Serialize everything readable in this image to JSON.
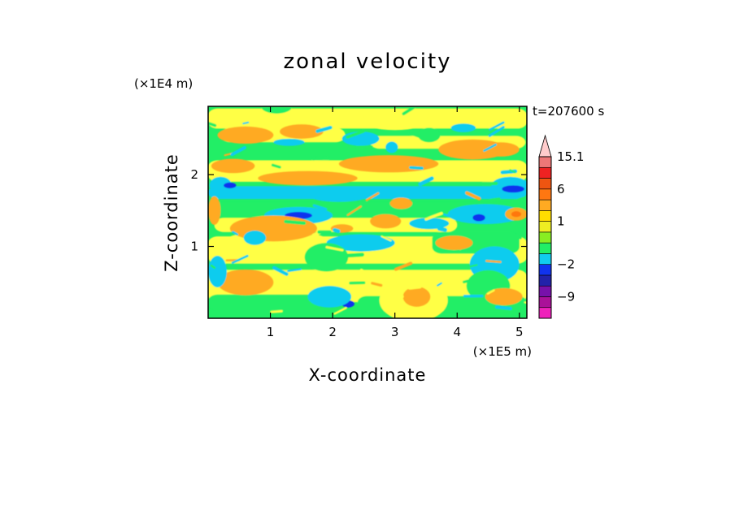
{
  "chart_data": {
    "type": "heatmap",
    "title": "zonal velocity",
    "xlabel": "X-coordinate",
    "ylabel": "Z-coordinate",
    "x_unit": "(×1E5 m)",
    "y_unit": "(×1E4 m)",
    "time_label": "t=207600 s",
    "xlim": [
      0,
      5.12
    ],
    "ylim": [
      0,
      2.95
    ],
    "x_ticks": [
      "1",
      "2",
      "3",
      "4",
      "5"
    ],
    "y_ticks": [
      "1",
      "2"
    ],
    "colorbar": {
      "labels": [
        "15.1",
        "6",
        "1",
        "−2",
        "−9"
      ],
      "levels": [
        {
          "min": -15,
          "max": -12,
          "color": "#ee22bb"
        },
        {
          "min": -12,
          "max": -9,
          "color": "#aa1199"
        },
        {
          "min": -9,
          "max": -6,
          "color": "#7711aa"
        },
        {
          "min": -6,
          "max": -4,
          "color": "#2222aa"
        },
        {
          "min": -4,
          "max": -2,
          "color": "#1133ee"
        },
        {
          "min": -2,
          "max": -1,
          "color": "#11ccee"
        },
        {
          "min": -1,
          "max": 0,
          "color": "#22ee66"
        },
        {
          "min": 0,
          "max": 0.5,
          "color": "#88ee22"
        },
        {
          "min": 0.5,
          "max": 1,
          "color": "#eeee22"
        },
        {
          "min": 1,
          "max": 2,
          "color": "#ffdd00"
        },
        {
          "min": 2,
          "max": 4,
          "color": "#ffaa22"
        },
        {
          "min": 4,
          "max": 6,
          "color": "#ff7711"
        },
        {
          "min": 6,
          "max": 9,
          "color": "#ee5511"
        },
        {
          "min": 9,
          "max": 12,
          "color": "#ee2222"
        },
        {
          "min": 12,
          "max": 15.1,
          "color": "#ee7777"
        },
        {
          "min": 15.1,
          "max": 18,
          "color": "#ffcccc"
        }
      ]
    },
    "field_palette": {
      "green": "#22ee66",
      "yellow": "#ffff44",
      "orange": "#ffaa22",
      "cyan": "#11ccee",
      "blue": "#1133ee",
      "red_orange": "#ff7711"
    }
  }
}
